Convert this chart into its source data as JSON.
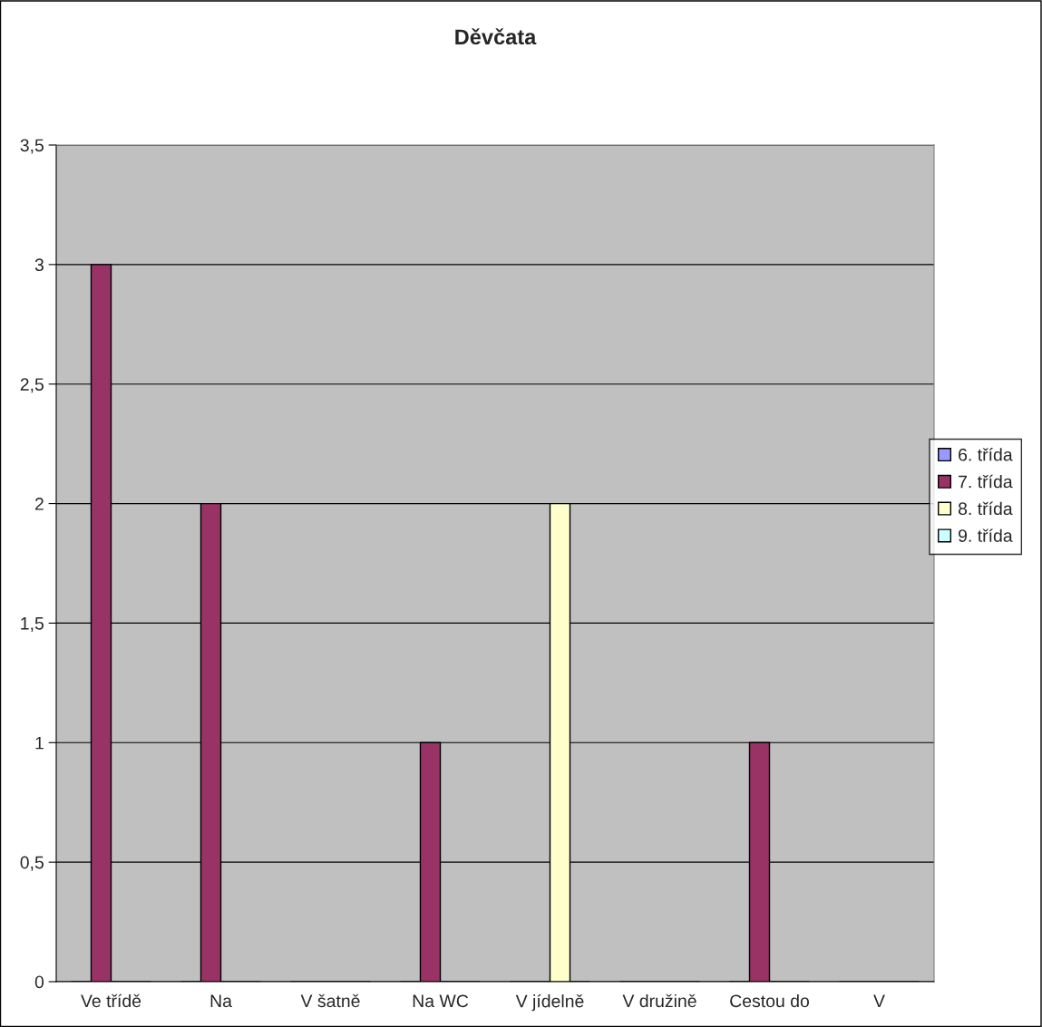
{
  "chart_data": {
    "type": "bar",
    "title": "Děvčata",
    "categories": [
      "Ve třídě",
      "Na",
      "V šatně",
      "Na WC",
      "V jídelně",
      "V družině",
      "Cestou do",
      "V"
    ],
    "series": [
      {
        "name": "6. třída",
        "color": "#9999ff",
        "values": [
          0,
          0,
          0,
          0,
          0,
          0,
          0,
          0
        ]
      },
      {
        "name": "7. třída",
        "color": "#993366",
        "values": [
          3,
          2,
          0,
          1,
          0,
          0,
          1,
          0
        ]
      },
      {
        "name": "8. třída",
        "color": "#ffffcc",
        "values": [
          0,
          0,
          0,
          0,
          2,
          0,
          0,
          0
        ]
      },
      {
        "name": "9. třída",
        "color": "#ccffff",
        "values": [
          0,
          0,
          0,
          0,
          0,
          0,
          0,
          0
        ]
      }
    ],
    "ylim": [
      0,
      3.5
    ],
    "yticks": [
      0,
      {
        "value": 0.5,
        "label": "0,5"
      },
      1,
      {
        "value": 1.5,
        "label": "1,5"
      },
      2,
      {
        "value": 2.5,
        "label": "2,5"
      },
      3,
      {
        "value": 3.5,
        "label": "3,5"
      }
    ],
    "grid": "y",
    "legend": "right"
  }
}
